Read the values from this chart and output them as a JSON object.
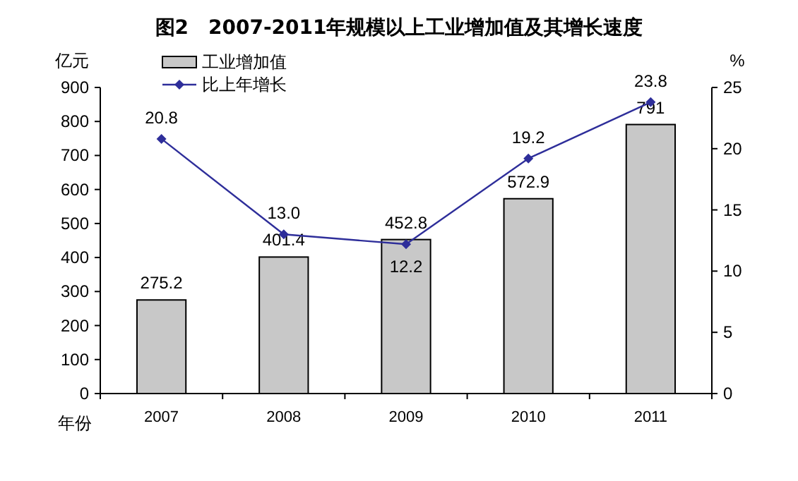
{
  "chart_data": {
    "type": "bar",
    "title": "图2　2007-2011年规模以上工业增加值及其增长速度",
    "xlabel": "年份",
    "ylabel": "亿元",
    "y2label": "%",
    "categories": [
      "2007",
      "2008",
      "2009",
      "2010",
      "2011"
    ],
    "series": [
      {
        "name": "工业增加值",
        "color": "#c8c8c8",
        "values": [
          275.2,
          401.4,
          452.8,
          572.9,
          791
        ],
        "value_labels": [
          "275.2",
          "401.4",
          "452.8",
          "572.9",
          "791"
        ]
      },
      {
        "name": "比上年增长",
        "type": "line",
        "axis": "y2",
        "color": "#2e2e9a",
        "marker": "diamond",
        "values": [
          20.8,
          13.0,
          12.2,
          19.2,
          23.8
        ],
        "value_labels": [
          "20.8",
          "13.0",
          "12.2",
          "19.2",
          "23.8"
        ]
      }
    ],
    "ylim": [
      0,
      900
    ],
    "yticks": [
      0,
      100,
      200,
      300,
      400,
      500,
      600,
      700,
      800,
      900
    ],
    "y2lim": [
      0,
      25
    ],
    "y2ticks": [
      0,
      5,
      10,
      15,
      20,
      25
    ],
    "legend": "top left",
    "grid": false
  }
}
